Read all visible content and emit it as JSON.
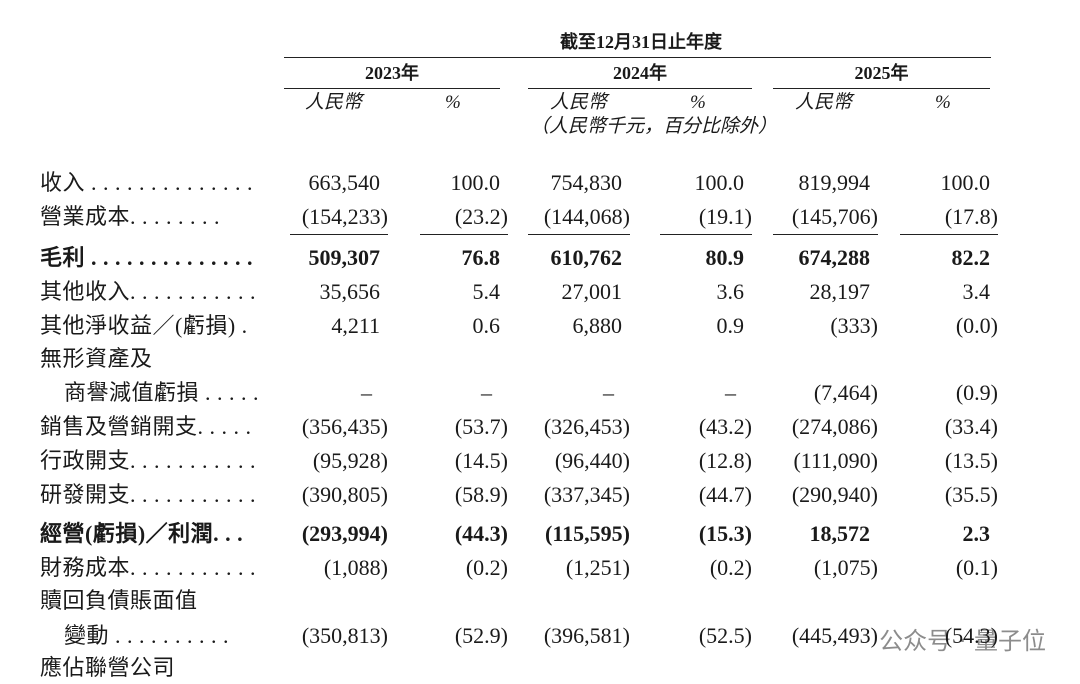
{
  "header": {
    "period": "截至12月31日止年度",
    "years": [
      "2023年",
      "2024年",
      "2025年"
    ],
    "subheaders": [
      "人民幣",
      "%",
      "人民幣",
      "%",
      "人民幣",
      "%"
    ],
    "note": "（人民幣千元，百分比除外）"
  },
  "table": {
    "rows": [
      {
        "label": "收入 . . . . . . . . . . . . . .",
        "values": [
          "663,540",
          "100.0",
          "754,830",
          "100.0",
          "819,994",
          "100.0"
        ]
      },
      {
        "label": "營業成本. . . . . . . .",
        "values": [
          "(154,233)",
          "(23.2)",
          "(144,068)",
          "(19.1)",
          "(145,706)",
          "(17.8)"
        ],
        "rule_below": true
      },
      {
        "label": "毛利 . . . . . . . . . . . . . .",
        "values": [
          "509,307",
          "76.8",
          "610,762",
          "80.9",
          "674,288",
          "82.2"
        ],
        "bold": true
      },
      {
        "label": "其他收入. . . . . . . . . . .",
        "values": [
          "35,656",
          "5.4",
          "27,001",
          "3.6",
          "28,197",
          "3.4"
        ]
      },
      {
        "label": "其他淨收益／(虧損) .",
        "values": [
          "4,211",
          "0.6",
          "6,880",
          "0.9",
          "(333)",
          "(0.0)"
        ]
      },
      {
        "label": "無形資產及"
      },
      {
        "label": "商譽減值虧損 . . . . .",
        "values": [
          "–",
          "–",
          "–",
          "–",
          "(7,464)",
          "(0.9)"
        ],
        "indent": true
      },
      {
        "label": "銷售及營銷開支. . . . .",
        "values": [
          "(356,435)",
          "(53.7)",
          "(326,453)",
          "(43.2)",
          "(274,086)",
          "(33.4)"
        ]
      },
      {
        "label": "行政開支. . . . . . . . . . .",
        "values": [
          "(95,928)",
          "(14.5)",
          "(96,440)",
          "(12.8)",
          "(111,090)",
          "(13.5)"
        ]
      },
      {
        "label": "研發開支. . . . . . . . . . .",
        "values": [
          "(390,805)",
          "(58.9)",
          "(337,345)",
          "(44.7)",
          "(290,940)",
          "(35.5)"
        ]
      },
      {
        "label": "經營(虧損)／利潤. . .",
        "values": [
          "(293,994)",
          "(44.3)",
          "(115,595)",
          "(15.3)",
          "18,572",
          "2.3"
        ],
        "bold": true
      },
      {
        "label": "財務成本. . . . . . . . . . .",
        "values": [
          "(1,088)",
          "(0.2)",
          "(1,251)",
          "(0.2)",
          "(1,075)",
          "(0.1)"
        ]
      },
      {
        "label": "贖回負債賬面值"
      },
      {
        "label": "變動 . . . . . . . . . .",
        "values": [
          "(350,813)",
          "(52.9)",
          "(396,581)",
          "(52.5)",
          "(445,493)",
          "(54.3)"
        ],
        "indent": true
      },
      {
        "label": "應佔聯營公司"
      }
    ]
  },
  "watermark": "公众号 · 量子位"
}
